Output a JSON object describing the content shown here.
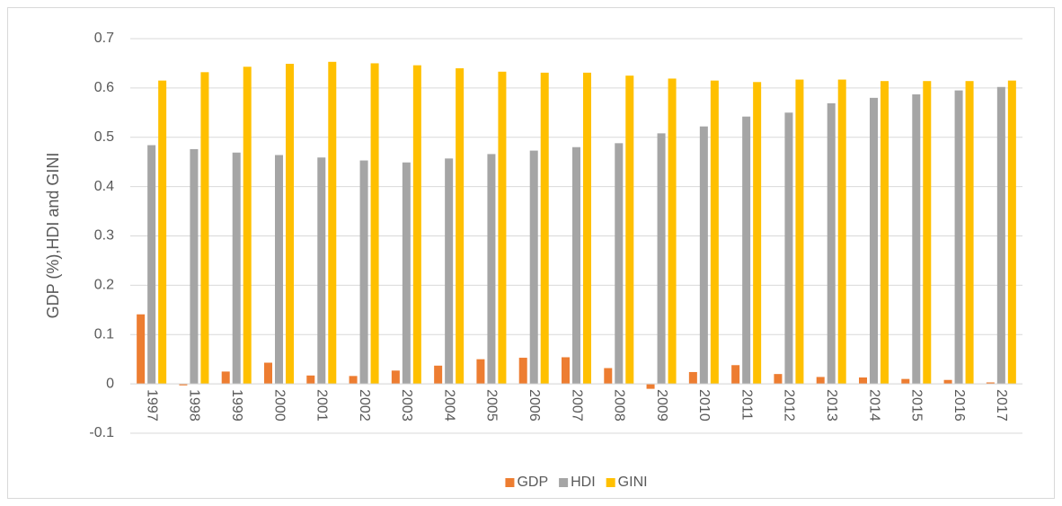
{
  "chart_data": {
    "type": "bar",
    "y_label": "GDP (%),HDI and GINI",
    "categories": [
      "1997",
      "1998",
      "1999",
      "2000",
      "2001",
      "2002",
      "2003",
      "2004",
      "2005",
      "2006",
      "2007",
      "2008",
      "2009",
      "2010",
      "2011",
      "2012",
      "2013",
      "2014",
      "2015",
      "2016",
      "2017"
    ],
    "series": [
      {
        "name": "GDP",
        "color": "#ed7d31",
        "values": [
          0.141,
          -0.003,
          0.025,
          0.043,
          0.017,
          0.016,
          0.027,
          0.037,
          0.05,
          0.053,
          0.054,
          0.032,
          -0.01,
          0.024,
          0.038,
          0.02,
          0.014,
          0.013,
          0.01,
          0.008,
          0.003
        ]
      },
      {
        "name": "HDI",
        "color": "#a5a5a5",
        "values": [
          0.484,
          0.476,
          0.469,
          0.464,
          0.459,
          0.453,
          0.449,
          0.457,
          0.466,
          0.473,
          0.48,
          0.488,
          0.508,
          0.522,
          0.542,
          0.55,
          0.569,
          0.58,
          0.587,
          0.595,
          0.602
        ]
      },
      {
        "name": "GINI",
        "color": "#ffc000",
        "values": [
          0.615,
          0.632,
          0.643,
          0.649,
          0.653,
          0.65,
          0.646,
          0.64,
          0.633,
          0.631,
          0.631,
          0.625,
          0.619,
          0.615,
          0.612,
          0.617,
          0.617,
          0.614,
          0.614,
          0.614,
          0.615
        ]
      }
    ],
    "ylim": [
      -0.1,
      0.7
    ],
    "yticks": [
      -0.1,
      0,
      0.1,
      0.2,
      0.3,
      0.4,
      0.5,
      0.6,
      0.7
    ],
    "grid": true,
    "legend": "bottom"
  }
}
